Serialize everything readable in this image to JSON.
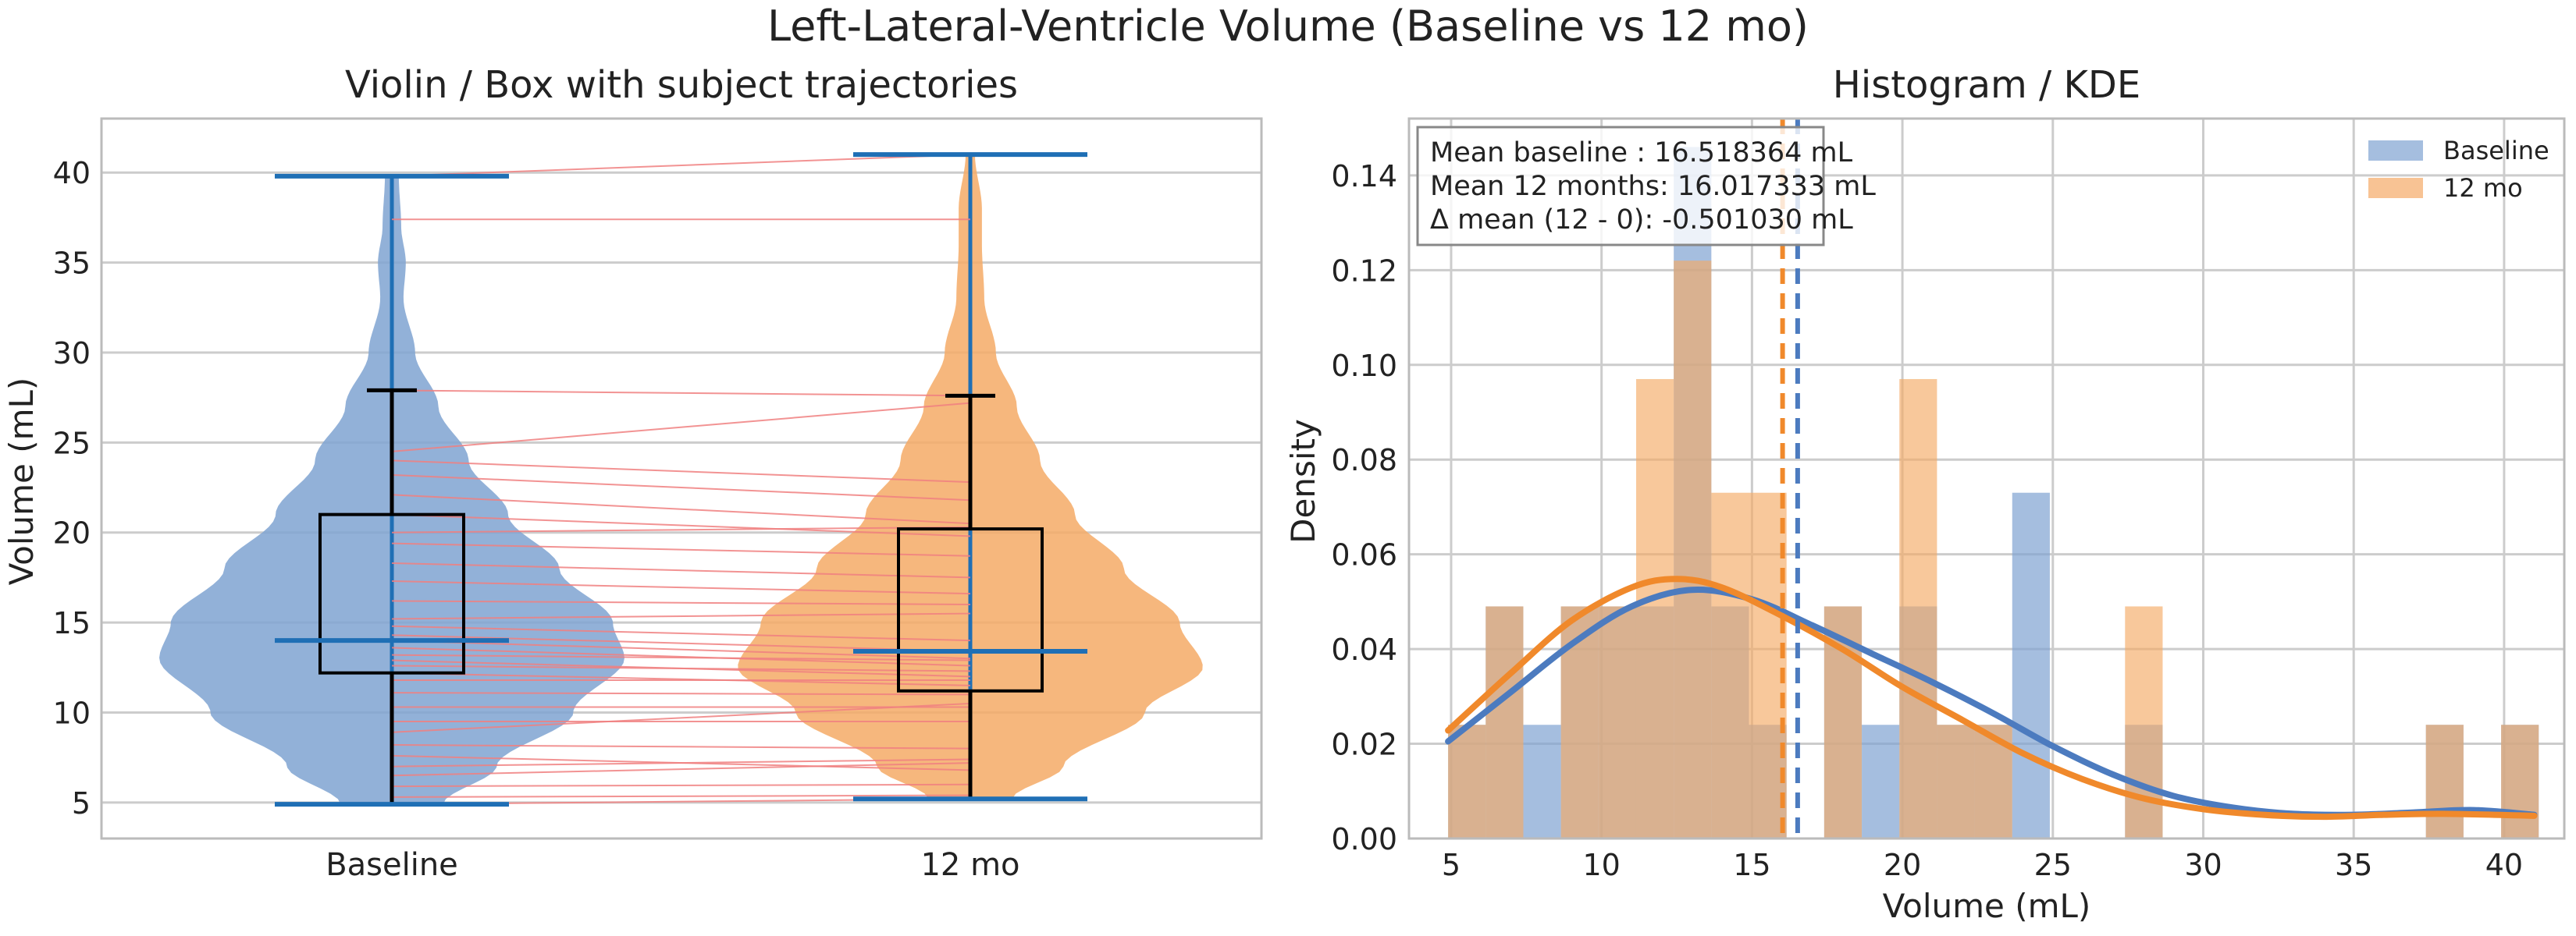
{
  "figure": {
    "suptitle": "Left-Lateral-Ventricle Volume (Baseline vs 12 mo)"
  },
  "colors": {
    "baseline": "#4C7BBF",
    "baseline_fill": "#7FA3D1",
    "twelve": "#F0892B",
    "twelve_fill": "#F5AA66",
    "overlap": "#C2966C",
    "extrema": "#1F6FB5",
    "median": "#F0892B",
    "trajectory": "#F08080",
    "grid": "#cccccc",
    "frame": "#bbbbbb"
  },
  "chart_data": [
    {
      "type": "violin",
      "title": "Violin / Box with subject trajectories",
      "xlabel": "",
      "ylabel": "Volume (mL)",
      "categories": [
        "Baseline",
        "12 mo"
      ],
      "ylim": [
        3,
        43
      ],
      "yticks": [
        5,
        10,
        15,
        20,
        25,
        30,
        35,
        40
      ],
      "grid": true,
      "groups": [
        {
          "name": "Baseline",
          "min": 4.9,
          "q1": 12.2,
          "median": 14.0,
          "q3": 21.0,
          "whisker_high": 27.9,
          "max": 39.8,
          "density": [
            [
              4.9,
              0.22
            ],
            [
              7,
              0.45
            ],
            [
              10,
              0.78
            ],
            [
              13,
              1.0
            ],
            [
              15,
              0.95
            ],
            [
              18,
              0.72
            ],
            [
              21,
              0.5
            ],
            [
              24,
              0.33
            ],
            [
              27,
              0.2
            ],
            [
              30,
              0.1
            ],
            [
              33,
              0.05
            ],
            [
              35,
              0.06
            ],
            [
              37,
              0.04
            ],
            [
              39.8,
              0.03
            ]
          ]
        },
        {
          "name": "12 mo",
          "min": 5.2,
          "q1": 11.2,
          "median": 13.4,
          "q3": 20.2,
          "whisker_high": 27.6,
          "max": 41.0,
          "density": [
            [
              5.2,
              0.18
            ],
            [
              7,
              0.4
            ],
            [
              10,
              0.75
            ],
            [
              12.5,
              1.0
            ],
            [
              15,
              0.9
            ],
            [
              18,
              0.66
            ],
            [
              21,
              0.45
            ],
            [
              24,
              0.3
            ],
            [
              27,
              0.2
            ],
            [
              30,
              0.11
            ],
            [
              33,
              0.06
            ],
            [
              36,
              0.05
            ],
            [
              38,
              0.05
            ],
            [
              41,
              0.02
            ]
          ]
        }
      ],
      "trajectories": [
        [
          39.8,
          41.0
        ],
        [
          37.4,
          37.4
        ],
        [
          27.9,
          27.6
        ],
        [
          24.5,
          27.2
        ],
        [
          24.0,
          22.8
        ],
        [
          23.2,
          21.8
        ],
        [
          22.1,
          20.5
        ],
        [
          21.0,
          19.8
        ],
        [
          20.0,
          20.3
        ],
        [
          19.4,
          18.7
        ],
        [
          18.3,
          17.5
        ],
        [
          17.3,
          16.6
        ],
        [
          16.2,
          16.0
        ],
        [
          15.2,
          15.5
        ],
        [
          14.8,
          14.0
        ],
        [
          14.3,
          13.4
        ],
        [
          14.0,
          13.0
        ],
        [
          13.6,
          12.6
        ],
        [
          13.2,
          12.9
        ],
        [
          12.9,
          12.0
        ],
        [
          12.6,
          12.3
        ],
        [
          12.2,
          11.5
        ],
        [
          11.8,
          11.8
        ],
        [
          11.1,
          11.0
        ],
        [
          10.3,
          10.3
        ],
        [
          9.5,
          9.5
        ],
        [
          8.9,
          10.5
        ],
        [
          8.2,
          8.0
        ],
        [
          7.6,
          6.8
        ],
        [
          7.0,
          7.4
        ],
        [
          6.5,
          7.2
        ],
        [
          5.9,
          6.0
        ],
        [
          5.3,
          5.4
        ],
        [
          4.9,
          5.2
        ]
      ]
    },
    {
      "type": "histogram",
      "title": "Histogram / KDE",
      "xlabel": "Volume (mL)",
      "ylabel": "Density",
      "xlim": [
        3.6,
        42.0
      ],
      "ylim": [
        0,
        0.152
      ],
      "xticks": [
        5,
        10,
        15,
        20,
        25,
        30,
        35,
        40
      ],
      "yticks": [
        0.0,
        0.02,
        0.04,
        0.06,
        0.08,
        0.1,
        0.12,
        0.14
      ],
      "ytick_labels": [
        "0.00",
        "0.02",
        "0.04",
        "0.06",
        "0.08",
        "0.10",
        "0.12",
        "0.14"
      ],
      "grid": true,
      "legend_placement": "top-right",
      "series": [
        {
          "name": "Baseline",
          "bins": [
            [
              4.9,
              6.15,
              0.024
            ],
            [
              6.15,
              7.4,
              0.049
            ],
            [
              7.4,
              8.65,
              0.024
            ],
            [
              8.65,
              9.9,
              0.049
            ],
            [
              9.9,
              11.15,
              0.049
            ],
            [
              11.15,
              12.4,
              0.049
            ],
            [
              12.4,
              13.65,
              0.146
            ],
            [
              13.65,
              14.9,
              0.049
            ],
            [
              14.9,
              16.15,
              0.024
            ],
            [
              17.4,
              18.65,
              0.049
            ],
            [
              18.65,
              19.9,
              0.024
            ],
            [
              19.9,
              21.15,
              0.049
            ],
            [
              21.15,
              22.4,
              0.024
            ],
            [
              22.4,
              23.65,
              0.024
            ],
            [
              23.65,
              24.9,
              0.073
            ],
            [
              27.4,
              28.65,
              0.024
            ],
            [
              37.4,
              38.65,
              0.024
            ],
            [
              39.9,
              41.15,
              0.024
            ]
          ],
          "mean": 16.518364,
          "kde": [
            [
              4.9,
              0.0205
            ],
            [
              7,
              0.031
            ],
            [
              9,
              0.041
            ],
            [
              11,
              0.049
            ],
            [
              13,
              0.0525
            ],
            [
              15,
              0.0505
            ],
            [
              17,
              0.045
            ],
            [
              19,
              0.039
            ],
            [
              21,
              0.033
            ],
            [
              23,
              0.0265
            ],
            [
              25,
              0.0195
            ],
            [
              27,
              0.0135
            ],
            [
              29,
              0.009
            ],
            [
              31,
              0.0065
            ],
            [
              33,
              0.0052
            ],
            [
              35,
              0.005
            ],
            [
              37,
              0.0055
            ],
            [
              39,
              0.006
            ],
            [
              41,
              0.005
            ]
          ]
        },
        {
          "name": "12 mo",
          "bins": [
            [
              4.9,
              6.15,
              0.024
            ],
            [
              6.15,
              7.4,
              0.049
            ],
            [
              8.65,
              9.9,
              0.049
            ],
            [
              9.9,
              11.15,
              0.049
            ],
            [
              11.15,
              12.4,
              0.097
            ],
            [
              12.4,
              13.65,
              0.122
            ],
            [
              13.65,
              14.9,
              0.073
            ],
            [
              14.9,
              16.15,
              0.073
            ],
            [
              17.4,
              18.65,
              0.049
            ],
            [
              19.9,
              21.15,
              0.097
            ],
            [
              21.15,
              22.4,
              0.024
            ],
            [
              22.4,
              23.65,
              0.024
            ],
            [
              27.4,
              28.65,
              0.049
            ],
            [
              37.4,
              38.65,
              0.024
            ],
            [
              39.9,
              41.15,
              0.024
            ]
          ],
          "mean": 16.017333,
          "kde": [
            [
              4.9,
              0.0228
            ],
            [
              7,
              0.035
            ],
            [
              9,
              0.046
            ],
            [
              11,
              0.053
            ],
            [
              12.5,
              0.0548
            ],
            [
              14,
              0.053
            ],
            [
              16,
              0.047
            ],
            [
              18,
              0.04
            ],
            [
              20,
              0.032
            ],
            [
              22,
              0.025
            ],
            [
              24,
              0.018
            ],
            [
              26,
              0.0125
            ],
            [
              28,
              0.0085
            ],
            [
              30,
              0.0062
            ],
            [
              32,
              0.005
            ],
            [
              34,
              0.0046
            ],
            [
              36,
              0.005
            ],
            [
              38,
              0.0052
            ],
            [
              41,
              0.0048
            ]
          ]
        }
      ],
      "annotation": {
        "lines": [
          "Mean baseline : 16.518364 mL",
          "Mean 12 months: 16.017333 mL",
          "Δ mean (12 - 0): -0.501030 mL"
        ]
      }
    }
  ]
}
